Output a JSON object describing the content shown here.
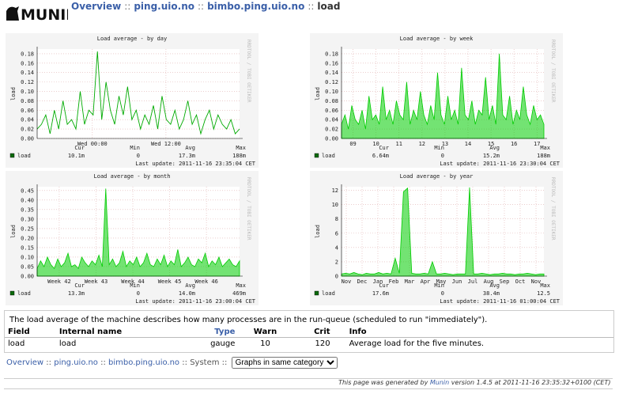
{
  "header": {
    "logo": "MUNIN",
    "breadcrumb": [
      "Overview",
      "ping.uio.no",
      "bimbo.ping.uio.no"
    ],
    "separator": "::",
    "current": "load"
  },
  "graphs": [
    {
      "type": "line",
      "title": "Load average - by day",
      "ylabel": "load",
      "side_label": "RRDTOOL / TOBI OETIKER",
      "area": false,
      "xlim": [
        0,
        33
      ],
      "xticks": [
        {
          "value": 9,
          "label": "Wed 00:00"
        },
        {
          "value": 21,
          "label": "Wed 12:00"
        }
      ],
      "ylim": [
        0,
        0.19
      ],
      "yticks": [
        {
          "value": 0,
          "label": "0.00"
        },
        0.02,
        0.04,
        0.06,
        0.08,
        {
          "value": 0.1,
          "label": "0.10"
        },
        0.12,
        0.14,
        0.16,
        0.18
      ],
      "stat_headers": [
        "Cur",
        "Min",
        "Avg",
        "Max"
      ],
      "series": [
        {
          "name": "load",
          "color": "#00aa00",
          "stats": [
            "10.1m",
            "0",
            "17.3m",
            "188m"
          ],
          "values": [
            0.02,
            0.03,
            0.05,
            0.01,
            0.06,
            0.02,
            0.08,
            0.03,
            0.04,
            0.02,
            0.1,
            0.03,
            0.06,
            0.05,
            0.185,
            0.04,
            0.12,
            0.06,
            0.03,
            0.09,
            0.05,
            0.11,
            0.04,
            0.06,
            0.02,
            0.05,
            0.03,
            0.07,
            0.02,
            0.09,
            0.04,
            0.03,
            0.06,
            0.02,
            0.04,
            0.08,
            0.03,
            0.05,
            0.01,
            0.04,
            0.06,
            0.02,
            0.05,
            0.03,
            0.02,
            0.04,
            0.01,
            0.02
          ]
        }
      ],
      "last_update": "Last update: 2011-11-16 23:35:04 CET"
    },
    {
      "type": "line",
      "title": "Load average - by week",
      "ylabel": "load",
      "side_label": "RRDTOOL / TOBI OETIKER",
      "area": true,
      "xlim": [
        8.5,
        17.3
      ],
      "xticks": [
        {
          "value": 9,
          "label": "09"
        },
        10,
        11,
        12,
        13,
        14,
        15,
        16,
        17
      ],
      "ylim": [
        0,
        0.19
      ],
      "yticks": [
        {
          "value": 0,
          "label": "0.00"
        },
        0.02,
        0.04,
        0.06,
        0.08,
        {
          "value": 0.1,
          "label": "0.10"
        },
        0.12,
        0.14,
        0.16,
        0.18
      ],
      "stat_headers": [
        "Cur",
        "Min",
        "Avg",
        "Max"
      ],
      "series": [
        {
          "name": "load",
          "color": "#00cc00",
          "stats": [
            "6.64m",
            "0",
            "15.2m",
            "188m"
          ],
          "values": [
            0.03,
            0.05,
            0.02,
            0.07,
            0.04,
            0.03,
            0.06,
            0.02,
            0.09,
            0.04,
            0.05,
            0.03,
            0.11,
            0.04,
            0.06,
            0.03,
            0.08,
            0.05,
            0.04,
            0.12,
            0.03,
            0.06,
            0.04,
            0.1,
            0.05,
            0.03,
            0.07,
            0.04,
            0.14,
            0.05,
            0.03,
            0.09,
            0.04,
            0.06,
            0.03,
            0.15,
            0.05,
            0.04,
            0.08,
            0.03,
            0.06,
            0.05,
            0.13,
            0.04,
            0.07,
            0.03,
            0.18,
            0.05,
            0.04,
            0.09,
            0.03,
            0.06,
            0.04,
            0.11,
            0.05,
            0.03,
            0.07,
            0.04,
            0.05,
            0.03
          ]
        }
      ],
      "last_update": "Last update: 2011-11-16 23:30:04 CET"
    },
    {
      "type": "line",
      "title": "Load average - by month",
      "ylabel": "load",
      "side_label": "RRDTOOL / TOBI OETIKER",
      "area": true,
      "xlim": [
        41.4,
        46.9
      ],
      "xticks": [
        {
          "value": 42,
          "label": "Week 42"
        },
        {
          "value": 43,
          "label": "Week 43"
        },
        {
          "value": 44,
          "label": "Week 44"
        },
        {
          "value": 45,
          "label": "Week 45"
        },
        {
          "value": 46,
          "label": "Week 46"
        }
      ],
      "ylim": [
        0,
        0.47
      ],
      "yticks": [
        {
          "value": 0,
          "label": "0.00"
        },
        0.05,
        {
          "value": 0.1,
          "label": "0.10"
        },
        0.15,
        {
          "value": 0.2,
          "label": "0.20"
        },
        0.25,
        {
          "value": 0.3,
          "label": "0.30"
        },
        0.35,
        {
          "value": 0.4,
          "label": "0.40"
        },
        0.45
      ],
      "stat_headers": [
        "Cur",
        "Min",
        "Avg",
        "Max"
      ],
      "series": [
        {
          "name": "load",
          "color": "#00cc00",
          "stats": [
            "13.3m",
            "0",
            "14.0m",
            "469m"
          ],
          "values": [
            0.04,
            0.08,
            0.05,
            0.1,
            0.06,
            0.04,
            0.09,
            0.05,
            0.07,
            0.12,
            0.05,
            0.06,
            0.04,
            0.1,
            0.07,
            0.05,
            0.08,
            0.06,
            0.11,
            0.05,
            0.46,
            0.06,
            0.09,
            0.05,
            0.07,
            0.13,
            0.05,
            0.08,
            0.06,
            0.1,
            0.05,
            0.07,
            0.12,
            0.06,
            0.05,
            0.09,
            0.06,
            0.11,
            0.05,
            0.08,
            0.06,
            0.14,
            0.05,
            0.07,
            0.1,
            0.06,
            0.05,
            0.09,
            0.07,
            0.12,
            0.05,
            0.08,
            0.06,
            0.1,
            0.05,
            0.07,
            0.09,
            0.06,
            0.05,
            0.08
          ]
        }
      ],
      "last_update": "Last update: 2011-11-16 23:00:04 CET"
    },
    {
      "type": "line",
      "title": "Load average - by year",
      "ylabel": "load",
      "side_label": "RRDTOOL / TOBI OETIKER",
      "area": true,
      "xlim": [
        -0.3,
        12.5
      ],
      "xticks": [
        {
          "value": 0,
          "label": "Nov"
        },
        {
          "value": 1,
          "label": "Dec"
        },
        {
          "value": 2,
          "label": "Jan"
        },
        {
          "value": 3,
          "label": "Feb"
        },
        {
          "value": 4,
          "label": "Mar"
        },
        {
          "value": 5,
          "label": "Apr"
        },
        {
          "value": 6,
          "label": "May"
        },
        {
          "value": 7,
          "label": "Jun"
        },
        {
          "value": 8,
          "label": "Jul"
        },
        {
          "value": 9,
          "label": "Aug"
        },
        {
          "value": 10,
          "label": "Sep"
        },
        {
          "value": 11,
          "label": "Oct"
        },
        {
          "value": 12,
          "label": "Nov"
        }
      ],
      "ylim": [
        0,
        12.5
      ],
      "yticks": [
        0,
        2,
        4,
        6,
        8,
        10,
        12
      ],
      "stat_headers": [
        "Cur",
        "Min",
        "Avg",
        "Max"
      ],
      "series": [
        {
          "name": "load",
          "color": "#00cc00",
          "stats": [
            "17.6m",
            "0",
            "38.4m",
            "12.5"
          ],
          "values": [
            0.3,
            0.4,
            0.3,
            0.5,
            0.3,
            0.2,
            0.4,
            0.3,
            0.3,
            0.5,
            0.3,
            0.4,
            0.3,
            2.5,
            0.4,
            11.8,
            12.3,
            0.4,
            0.3,
            0.3,
            0.4,
            0.3,
            2.0,
            0.3,
            0.3,
            0.4,
            0.3,
            0.2,
            0.3,
            0.3,
            0.3,
            12.4,
            0.3,
            0.3,
            0.4,
            0.3,
            0.2,
            0.3,
            0.3,
            0.4,
            0.3,
            0.3,
            0.2,
            0.3,
            0.3,
            0.4,
            0.3,
            0.2,
            0.3,
            0.3
          ]
        }
      ],
      "last_update": "Last update: 2011-11-16 01:00:04 CET"
    }
  ],
  "info": {
    "description": "The load average of the machine describes how many processes are in the run-queue (scheduled to run \"immediately\").",
    "headers": [
      "Field",
      "Internal name",
      "Type",
      "Warn",
      "Crit",
      "Info"
    ],
    "rows": [
      [
        "load",
        "load",
        "gauge",
        "10",
        "120",
        "Average load for the five minutes."
      ]
    ]
  },
  "footer_nav": {
    "links": [
      "Overview",
      "ping.uio.no",
      "bimbo.ping.uio.no",
      "System"
    ],
    "separator": "::",
    "select": "Graphs in same category"
  },
  "generated": {
    "before": "This page was generated by",
    "link": "Munin",
    "after": "version 1.4.5 at 2011-11-16 23:35:32+0100 (CET)"
  }
}
